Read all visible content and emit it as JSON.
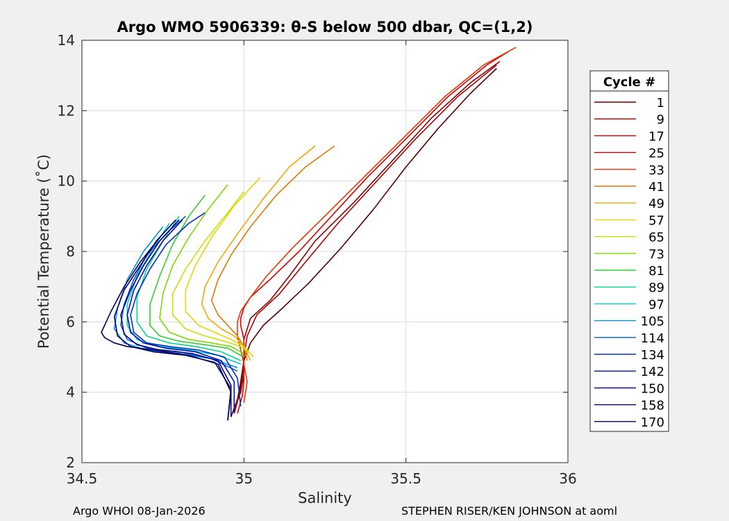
{
  "chart_data": {
    "type": "line",
    "title": "Argo WMO 5906339: θ-S below 500 dbar,  QC=(1,2)",
    "xlabel": "Salinity",
    "ylabel": "Potential Temperature (˚C)",
    "xlim": [
      34.5,
      36
    ],
    "ylim": [
      2,
      14
    ],
    "xticks": [
      34.5,
      35,
      35.5,
      36
    ],
    "yticks": [
      2,
      4,
      6,
      8,
      10,
      12,
      14
    ],
    "grid": true,
    "legend_title": "Cycle #",
    "legend_position": "right",
    "series": [
      {
        "name": "1",
        "color": "#5a0000",
        "x": [
          34.96,
          34.98,
          34.99,
          35.0,
          35.02,
          35.06,
          35.12,
          35.2,
          35.3,
          35.4,
          35.5,
          35.6,
          35.7,
          35.78
        ],
        "y": [
          3.3,
          3.8,
          4.3,
          4.9,
          5.4,
          5.9,
          6.4,
          7.1,
          8.1,
          9.2,
          10.4,
          11.5,
          12.5,
          13.2
        ]
      },
      {
        "name": "9",
        "color": "#8b0000",
        "x": [
          34.97,
          34.985,
          34.995,
          35.0,
          35.0,
          35.02,
          35.08,
          35.14,
          35.22,
          35.34,
          35.46,
          35.58,
          35.7,
          35.79
        ],
        "y": [
          3.4,
          3.9,
          4.4,
          5.0,
          5.5,
          6.1,
          6.6,
          7.3,
          8.3,
          9.4,
          10.6,
          11.8,
          12.8,
          13.4
        ]
      },
      {
        "name": "17",
        "color": "#b00000",
        "x": [
          34.97,
          34.99,
          35.0,
          35.0,
          35.01,
          35.04,
          35.11,
          35.19,
          35.29,
          35.41,
          35.53,
          35.66,
          35.78
        ],
        "y": [
          3.5,
          4.0,
          4.5,
          5.0,
          5.6,
          6.2,
          6.8,
          7.7,
          8.8,
          10.0,
          11.2,
          12.4,
          13.3
        ]
      },
      {
        "name": "25",
        "color": "#d40000",
        "x": [
          34.98,
          34.995,
          35.0,
          35.0,
          35.0,
          35.0,
          34.99,
          34.99,
          35.0,
          35.02,
          35.08,
          35.17,
          35.27,
          35.38,
          35.5,
          35.63,
          35.75,
          35.82
        ],
        "y": [
          3.4,
          3.9,
          4.3,
          4.7,
          5.1,
          5.5,
          5.9,
          6.1,
          6.4,
          6.7,
          7.2,
          8.0,
          9.0,
          10.1,
          11.2,
          12.4,
          13.3,
          13.7
        ]
      },
      {
        "name": "33",
        "color": "#ee3300",
        "x": [
          35.0,
          35.01,
          35.0,
          34.99,
          34.98,
          34.98,
          34.99,
          35.02,
          35.07,
          35.15,
          35.26,
          35.38,
          35.5,
          35.62,
          35.74,
          35.84
        ],
        "y": [
          3.7,
          4.3,
          4.8,
          5.2,
          5.6,
          6.0,
          6.3,
          6.7,
          7.3,
          8.1,
          9.1,
          10.2,
          11.3,
          12.4,
          13.3,
          13.8
        ]
      },
      {
        "name": "41",
        "color": "#e07800",
        "x": [
          35.01,
          35.0,
          34.98,
          34.95,
          34.92,
          34.9,
          34.92,
          34.96,
          35.02,
          35.1,
          35.19,
          35.28
        ],
        "y": [
          4.9,
          5.3,
          5.6,
          5.9,
          6.2,
          6.6,
          7.2,
          7.9,
          8.7,
          9.6,
          10.4,
          11.0
        ]
      },
      {
        "name": "49",
        "color": "#f0a800",
        "x": [
          35.02,
          35.0,
          34.97,
          34.93,
          34.89,
          34.87,
          34.88,
          34.92,
          34.98,
          35.06,
          35.14,
          35.22
        ],
        "y": [
          4.9,
          5.3,
          5.6,
          5.8,
          6.1,
          6.5,
          7.0,
          7.7,
          8.5,
          9.5,
          10.4,
          11.0
        ]
      },
      {
        "name": "57",
        "color": "#e8d400",
        "x": [
          35.03,
          35.0,
          34.96,
          34.91,
          34.86,
          34.82,
          34.82,
          34.85,
          34.9,
          34.97,
          35.05
        ],
        "y": [
          5.0,
          5.3,
          5.5,
          5.7,
          5.9,
          6.3,
          6.9,
          7.6,
          8.4,
          9.3,
          10.1
        ]
      },
      {
        "name": "65",
        "color": "#c8e000",
        "x": [
          35.02,
          34.99,
          34.94,
          34.88,
          34.82,
          34.78,
          34.78,
          34.82,
          34.88,
          34.95,
          35.0
        ],
        "y": [
          5.1,
          5.3,
          5.45,
          5.6,
          5.8,
          6.2,
          6.8,
          7.5,
          8.3,
          9.1,
          9.7
        ]
      },
      {
        "name": "73",
        "color": "#80d800",
        "x": [
          35.0,
          34.96,
          34.9,
          34.83,
          34.77,
          34.74,
          34.75,
          34.78,
          34.83,
          34.89,
          34.95
        ],
        "y": [
          5.1,
          5.3,
          5.4,
          5.5,
          5.7,
          6.1,
          6.8,
          7.6,
          8.4,
          9.2,
          9.9
        ]
      },
      {
        "name": "81",
        "color": "#30d030",
        "x": [
          35.0,
          34.95,
          34.88,
          34.8,
          34.74,
          34.71,
          34.71,
          34.74,
          34.78,
          34.83,
          34.88
        ],
        "y": [
          5.0,
          5.25,
          5.35,
          5.45,
          5.6,
          5.9,
          6.5,
          7.3,
          8.2,
          9.0,
          9.6
        ]
      },
      {
        "name": "89",
        "color": "#00d890",
        "x": [
          34.99,
          34.93,
          34.85,
          34.77,
          34.7,
          34.67,
          34.67,
          34.7,
          34.75,
          34.8
        ],
        "y": [
          4.9,
          5.15,
          5.3,
          5.4,
          5.6,
          6.0,
          6.7,
          7.5,
          8.3,
          9.0
        ]
      },
      {
        "name": "97",
        "color": "#00c8d0",
        "x": [
          34.99,
          34.92,
          34.83,
          34.74,
          34.67,
          34.64,
          34.64,
          34.67,
          34.72,
          34.77
        ],
        "y": [
          4.8,
          5.05,
          5.2,
          5.3,
          5.5,
          5.9,
          6.5,
          7.3,
          8.1,
          8.8
        ]
      },
      {
        "name": "105",
        "color": "#0090e0",
        "x": [
          34.98,
          34.9,
          34.8,
          34.7,
          34.63,
          34.6,
          34.61,
          34.64,
          34.69,
          34.75
        ],
        "y": [
          4.7,
          4.95,
          5.1,
          5.2,
          5.4,
          5.8,
          6.4,
          7.2,
          8.0,
          8.7
        ]
      },
      {
        "name": "114",
        "color": "#0060d0",
        "x": [
          34.98,
          34.9,
          34.8,
          34.7,
          34.64,
          34.62,
          34.63,
          34.66,
          34.7,
          34.76,
          34.82
        ],
        "y": [
          4.6,
          4.95,
          5.15,
          5.25,
          5.5,
          5.9,
          6.5,
          7.2,
          7.9,
          8.5,
          9.0
        ]
      },
      {
        "name": "134",
        "color": "#0030c0",
        "x": [
          34.99,
          34.98,
          34.94,
          34.86,
          34.77,
          34.7,
          34.66,
          34.65,
          34.67,
          34.71,
          34.76,
          34.83,
          34.88
        ],
        "y": [
          3.6,
          4.4,
          5.0,
          5.2,
          5.3,
          5.4,
          5.7,
          6.2,
          6.8,
          7.5,
          8.2,
          8.8,
          9.1
        ]
      },
      {
        "name": "142",
        "color": "#0010a8",
        "x": [
          34.97,
          34.97,
          34.93,
          34.85,
          34.76,
          34.69,
          34.65,
          34.64,
          34.66,
          34.7,
          34.75,
          34.81
        ],
        "y": [
          3.4,
          4.3,
          4.9,
          5.15,
          5.25,
          5.4,
          5.7,
          6.2,
          6.9,
          7.6,
          8.3,
          8.9
        ]
      },
      {
        "name": "150",
        "color": "#00008b",
        "x": [
          34.96,
          34.96,
          34.92,
          34.84,
          34.74,
          34.67,
          34.63,
          34.62,
          34.65,
          34.69,
          34.74,
          34.8
        ],
        "y": [
          3.3,
          4.2,
          4.9,
          5.1,
          5.2,
          5.35,
          5.65,
          6.2,
          6.9,
          7.6,
          8.3,
          8.9
        ]
      },
      {
        "name": "158",
        "color": "#000070",
        "x": [
          34.95,
          34.96,
          34.91,
          34.82,
          34.72,
          34.65,
          34.61,
          34.6,
          34.63,
          34.68,
          34.73,
          34.79
        ],
        "y": [
          3.2,
          4.1,
          4.85,
          5.05,
          5.15,
          5.3,
          5.6,
          6.15,
          6.9,
          7.6,
          8.3,
          8.9
        ]
      },
      {
        "name": "170",
        "color": "#000050",
        "x": [
          34.95,
          34.96,
          34.92,
          34.83,
          34.72,
          34.64,
          34.6,
          34.57,
          34.56,
          34.59,
          34.63,
          34.68,
          34.74
        ],
        "y": [
          3.2,
          4.0,
          4.8,
          5.05,
          5.2,
          5.3,
          5.4,
          5.55,
          5.7,
          6.3,
          7.0,
          7.7,
          8.4
        ]
      }
    ]
  },
  "footer": {
    "left": "Argo WHOI 08-Jan-2026",
    "right": "STEPHEN RISER/KEN JOHNSON at aoml"
  }
}
